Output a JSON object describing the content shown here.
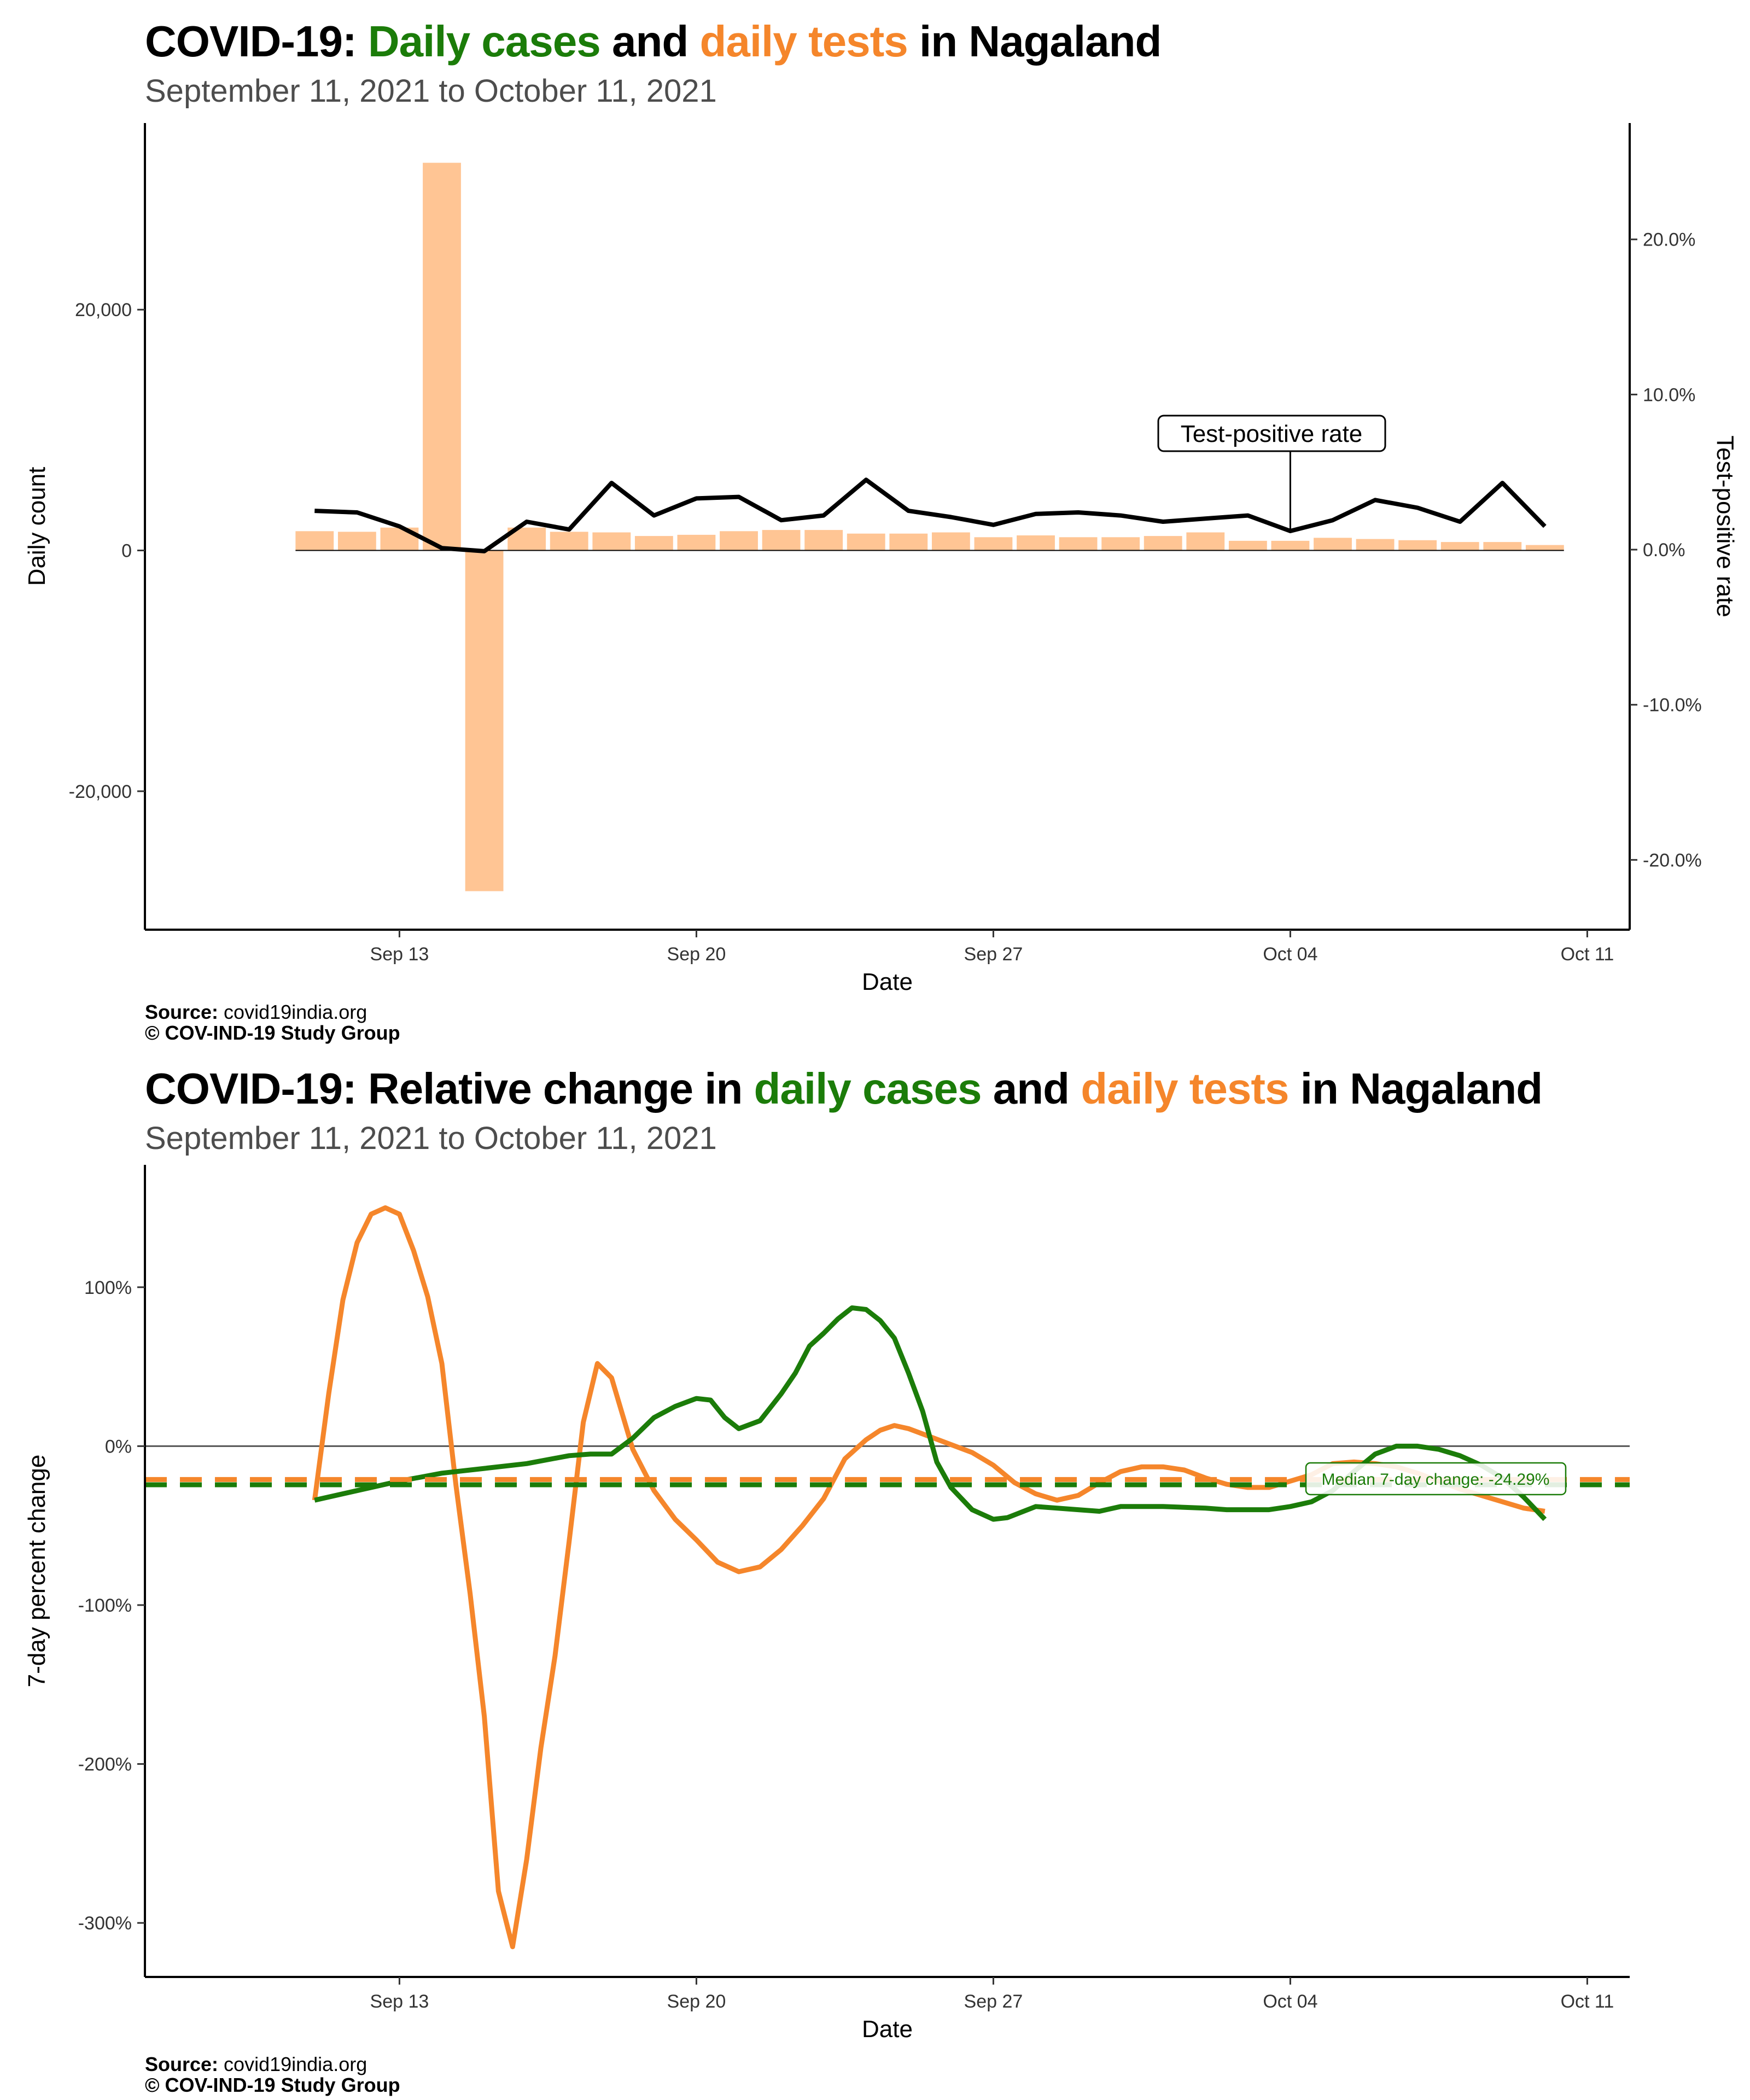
{
  "colors": {
    "cases": "#1b7c09",
    "tests": "#f5862b",
    "tests_bar": "#ffc594",
    "tpr_line": "#000000"
  },
  "panel1": {
    "title": {
      "prefix": "COVID-19: ",
      "cases": "Daily cases",
      "mid": " and ",
      "tests": "daily tests",
      "suffix": " in Nagaland"
    },
    "subtitle": "September 11, 2021 to October 11, 2021",
    "source_label": "Source:",
    "source_value": " covid19india.org",
    "copyright": "© COV-IND-19 Study Group"
  },
  "panel2": {
    "title": {
      "prefix": "COVID-19: Relative change in ",
      "cases": "daily cases",
      "mid": " and ",
      "tests": "daily tests",
      "suffix": " in Nagaland"
    },
    "subtitle": "September 11, 2021 to October 11, 2021",
    "source_label": "Source:",
    "source_value": " covid19india.org",
    "copyright": "© COV-IND-19 Study Group"
  },
  "chart_data": [
    {
      "type": "bar",
      "xlabel": "Date",
      "ylabel": "Daily count",
      "y2label": "Test-positive rate",
      "ylim": [
        -31500,
        35500
      ],
      "y2lim": [
        -0.245,
        0.275
      ],
      "xlim": [
        "2021-09-07",
        "2021-10-12"
      ],
      "x_ticks": [
        "Sep 13",
        "Sep 20",
        "Sep 27",
        "Oct 04",
        "Oct 11"
      ],
      "x_tick_dates": [
        "2021-09-13",
        "2021-09-20",
        "2021-09-27",
        "2021-10-04",
        "2021-10-11"
      ],
      "y_ticks": [
        "-20,000",
        "0",
        "20,000"
      ],
      "y_tick_values": [
        -20000,
        0,
        20000
      ],
      "y2_ticks": [
        "-20.0%",
        "-10.0%",
        "0.0%",
        "10.0%",
        "20.0%"
      ],
      "y2_tick_values": [
        -0.2,
        -0.1,
        0.0,
        0.1,
        0.2
      ],
      "annotation": {
        "label": "Test-positive rate",
        "date": "2021-10-04"
      },
      "x": [
        "2021-09-11",
        "2021-09-12",
        "2021-09-13",
        "2021-09-14",
        "2021-09-15",
        "2021-09-16",
        "2021-09-17",
        "2021-09-18",
        "2021-09-19",
        "2021-09-20",
        "2021-09-21",
        "2021-09-22",
        "2021-09-23",
        "2021-09-24",
        "2021-09-25",
        "2021-09-26",
        "2021-09-27",
        "2021-09-28",
        "2021-09-29",
        "2021-09-30",
        "2021-10-01",
        "2021-10-02",
        "2021-10-03",
        "2021-10-04",
        "2021-10-05",
        "2021-10-06",
        "2021-10-07",
        "2021-10-08",
        "2021-10-09",
        "2021-10-10"
      ],
      "series": [
        {
          "name": "daily tests",
          "kind": "bar",
          "values": [
            1600,
            1550,
            1900,
            32200,
            -28300,
            1900,
            1550,
            1500,
            1200,
            1300,
            1600,
            1700,
            1700,
            1400,
            1400,
            1500,
            1100,
            1250,
            1100,
            1100,
            1200,
            1500,
            800,
            800,
            1050,
            950,
            850,
            700,
            700,
            450
          ]
        },
        {
          "name": "Test-positive rate",
          "kind": "line",
          "values": [
            0.025,
            0.024,
            0.015,
            0.001,
            -0.001,
            0.018,
            0.013,
            0.043,
            0.022,
            0.033,
            0.034,
            0.019,
            0.022,
            0.045,
            0.025,
            0.021,
            0.016,
            0.023,
            0.024,
            0.022,
            0.018,
            0.02,
            0.022,
            0.012,
            0.019,
            0.032,
            0.027,
            0.018,
            0.043,
            0.015
          ]
        }
      ]
    },
    {
      "type": "line",
      "xlabel": "Date",
      "ylabel": "7-day percent change",
      "ylim": [
        -334,
        177
      ],
      "xlim": [
        "2021-09-07",
        "2021-10-12"
      ],
      "x_ticks": [
        "Sep 13",
        "Sep 20",
        "Sep 27",
        "Oct 04",
        "Oct 11"
      ],
      "x_tick_dates": [
        "2021-09-13",
        "2021-09-20",
        "2021-09-27",
        "2021-10-04",
        "2021-10-11"
      ],
      "y_ticks": [
        "-300%",
        "-200%",
        "-100%",
        "0%",
        "100%"
      ],
      "y_tick_values": [
        -300,
        -200,
        -100,
        0,
        100
      ],
      "median_label": "Median 7-day change: -24.29%",
      "median_cases": -24.29,
      "median_tests": -21,
      "series": [
        {
          "name": "daily cases",
          "x": [
            "2021-09-11",
            "2021-09-12",
            "2021-09-13",
            "2021-09-14",
            "2021-09-15",
            "2021-09-16",
            "2021-09-17",
            "2021-09-17T12",
            "2021-09-18",
            "2021-09-18T12",
            "2021-09-19",
            "2021-09-19T12",
            "2021-09-20",
            "2021-09-20T08",
            "2021-09-20T16",
            "2021-09-21",
            "2021-09-21T12",
            "2021-09-22",
            "2021-09-22T08",
            "2021-09-22T16",
            "2021-09-23",
            "2021-09-23T08",
            "2021-09-23T16",
            "2021-09-24",
            "2021-09-24T08",
            "2021-09-24T16",
            "2021-09-25",
            "2021-09-25T08",
            "2021-09-25T16",
            "2021-09-26",
            "2021-09-26T12",
            "2021-09-27",
            "2021-09-27T08",
            "2021-09-28",
            "2021-09-29",
            "2021-09-29T12",
            "2021-09-30",
            "2021-10-01",
            "2021-10-02",
            "2021-10-02T12",
            "2021-10-03",
            "2021-10-03T12",
            "2021-10-04",
            "2021-10-04T12",
            "2021-10-05",
            "2021-10-05T12",
            "2021-10-06",
            "2021-10-06T12",
            "2021-10-07",
            "2021-10-07T12",
            "2021-10-08",
            "2021-10-08T12",
            "2021-10-09",
            "2021-10-09T12",
            "2021-10-10"
          ],
          "values": [
            -34,
            -28,
            -22,
            -17,
            -14,
            -11,
            -6,
            -5,
            -5,
            5,
            18,
            25,
            30,
            29,
            18,
            11,
            16,
            33,
            46,
            63,
            71,
            80,
            87,
            86,
            79,
            68,
            46,
            22,
            -10,
            -26,
            -40,
            -46,
            -45,
            -38,
            -40,
            -41,
            -38,
            -38,
            -39,
            -40,
            -40,
            -40,
            -38,
            -35,
            -28,
            -16,
            -5,
            0,
            0,
            -2,
            -6,
            -12,
            -20,
            -32,
            -46
          ]
        },
        {
          "name": "daily tests",
          "x": [
            "2021-09-11",
            "2021-09-11T08",
            "2021-09-11T16",
            "2021-09-12",
            "2021-09-12T08",
            "2021-09-12T16",
            "2021-09-13",
            "2021-09-13T08",
            "2021-09-13T16",
            "2021-09-14",
            "2021-09-14T08",
            "2021-09-14T16",
            "2021-09-15",
            "2021-09-15T08",
            "2021-09-15T16",
            "2021-09-16",
            "2021-09-16T08",
            "2021-09-16T16",
            "2021-09-17",
            "2021-09-17T08",
            "2021-09-17T16",
            "2021-09-18",
            "2021-09-18T12",
            "2021-09-19",
            "2021-09-19T12",
            "2021-09-20",
            "2021-09-20T12",
            "2021-09-21",
            "2021-09-21T12",
            "2021-09-22",
            "2021-09-22T12",
            "2021-09-23",
            "2021-09-23T12",
            "2021-09-24",
            "2021-09-24T08",
            "2021-09-24T16",
            "2021-09-25",
            "2021-09-25T12",
            "2021-09-26",
            "2021-09-26T12",
            "2021-09-27",
            "2021-09-27T12",
            "2021-09-28",
            "2021-09-28T12",
            "2021-09-29",
            "2021-09-29T12",
            "2021-09-30",
            "2021-09-30T12",
            "2021-10-01",
            "2021-10-01T12",
            "2021-10-02",
            "2021-10-02T12",
            "2021-10-03",
            "2021-10-03T12",
            "2021-10-04",
            "2021-10-04T12",
            "2021-10-05",
            "2021-10-05T12",
            "2021-10-06",
            "2021-10-06T12",
            "2021-10-07",
            "2021-10-07T12",
            "2021-10-08",
            "2021-10-08T12",
            "2021-10-09",
            "2021-10-09T12",
            "2021-10-10"
          ],
          "values": [
            -34,
            33,
            92,
            128,
            146,
            150,
            146,
            123,
            94,
            52,
            -25,
            -93,
            -170,
            -280,
            -315,
            -260,
            -190,
            -132,
            -60,
            15,
            52,
            43,
            -2,
            -28,
            -46,
            -59,
            -73,
            -79,
            -76,
            -65,
            -50,
            -33,
            -8,
            4,
            10,
            13,
            11,
            6,
            1,
            -4,
            -12,
            -23,
            -30,
            -34,
            -31,
            -23,
            -16,
            -13,
            -13,
            -15,
            -20,
            -24,
            -26,
            -26,
            -22,
            -18,
            -11,
            -10,
            -11,
            -13,
            -17,
            -22,
            -27,
            -31,
            -35,
            -39,
            -41
          ]
        }
      ]
    }
  ]
}
